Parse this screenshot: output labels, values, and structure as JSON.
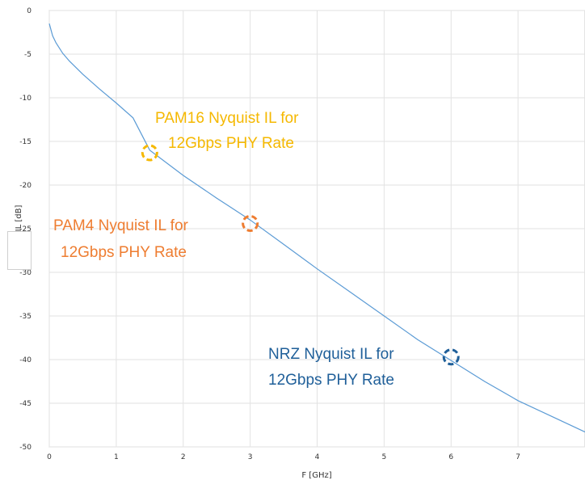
{
  "chart_data": {
    "type": "line",
    "title": "",
    "xlabel": "F [GHz]",
    "ylabel": "IL [dB]",
    "xlim": [
      0,
      8
    ],
    "ylim": [
      -50,
      0
    ],
    "xticks": [
      0,
      1,
      2,
      3,
      4,
      5,
      6,
      7
    ],
    "yticks": [
      0,
      -5,
      -10,
      -15,
      -20,
      -25,
      -30,
      -35,
      -40,
      -45,
      -50
    ],
    "grid": true,
    "series": [
      {
        "color": "#5b9bd5",
        "x": [
          0,
          0.05,
          0.1,
          0.2,
          0.3,
          0.5,
          0.75,
          1.0,
          1.25,
          1.5,
          2.0,
          2.5,
          3.0,
          3.5,
          4.0,
          4.5,
          5.0,
          5.5,
          6.0,
          6.5,
          7.0,
          7.5,
          8.0
        ],
        "y": [
          -1.5,
          -2.9,
          -3.7,
          -4.9,
          -5.8,
          -7.3,
          -9.0,
          -10.6,
          -12.3,
          -16.0,
          -18.9,
          -21.5,
          -24.0,
          -26.8,
          -29.6,
          -32.3,
          -35.0,
          -37.7,
          -40.1,
          -42.5,
          -44.7,
          -46.5,
          -48.3
        ]
      }
    ],
    "annotations": [
      {
        "lines": [
          "PAM16 Nyquist IL for",
          "12Gbps PHY Rate"
        ],
        "color": "#f5b800",
        "marker_x": 1.5,
        "marker_y": -16.3
      },
      {
        "lines": [
          "PAM4 Nyquist IL for",
          "12Gbps PHY Rate"
        ],
        "color": "#ee7d31",
        "marker_x": 3.0,
        "marker_y": -24.4
      },
      {
        "lines": [
          "NRZ Nyquist IL for",
          "12Gbps PHY Rate"
        ],
        "color": "#1f5f99",
        "marker_x": 6.0,
        "marker_y": -39.7
      }
    ]
  }
}
